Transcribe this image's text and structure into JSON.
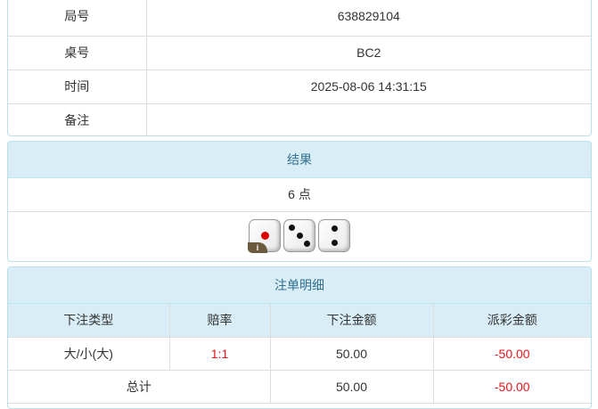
{
  "info": [
    {
      "label": "局号",
      "value": "638829104"
    },
    {
      "label": "桌号",
      "value": "BC2"
    },
    {
      "label": "时间",
      "value": "2025-08-06 14:31:15"
    },
    {
      "label": "备注",
      "value": ""
    }
  ],
  "result": {
    "title": "结果",
    "points": "6 点",
    "dice": [
      1,
      3,
      2
    ],
    "info_badge": "i"
  },
  "bets": {
    "title": "注单明细",
    "headers": [
      "下注类型",
      "赔率",
      "下注金额",
      "派彩金额"
    ],
    "rows": [
      {
        "type": "大/小(大)",
        "odds": "1:1",
        "amount": "50.00",
        "payout": "-50.00"
      }
    ],
    "total": {
      "label": "总计",
      "amount": "50.00",
      "payout": "-50.00"
    }
  },
  "colors": {
    "header_bg": "#d9edf7",
    "header_text": "#31708f",
    "negative": "#e4161b"
  }
}
